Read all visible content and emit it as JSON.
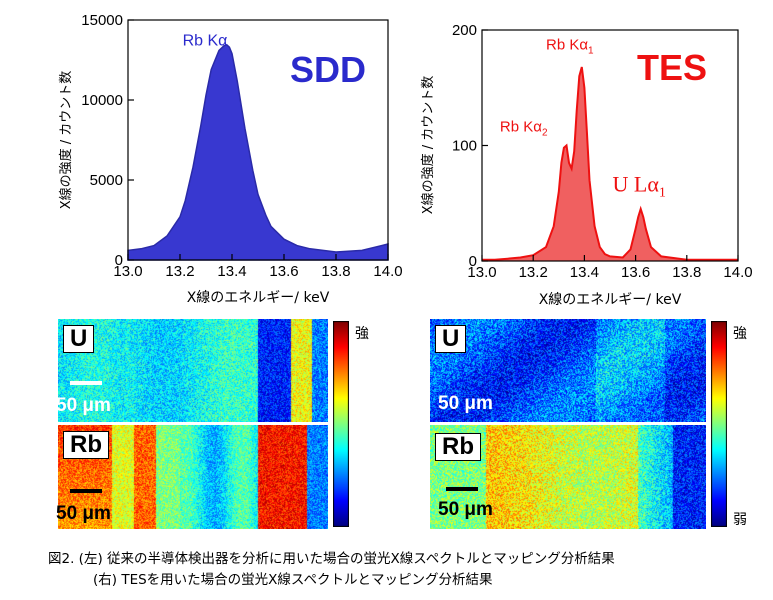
{
  "chart_data": [
    {
      "type": "area",
      "detector": "SDD",
      "xlabel": "X線のエネルギー/ keV",
      "ylabel": "X線の強度 / カウント数",
      "xlim": [
        13.0,
        14.0
      ],
      "ylim": [
        0,
        15000
      ],
      "xticks": [
        "13.0",
        "13.2",
        "13.4",
        "13.6",
        "13.8",
        "14.0"
      ],
      "yticks": [
        "0",
        "5000",
        "10000",
        "15000"
      ],
      "color": "#3333cc",
      "annotations": [
        {
          "text": "Rb Kα",
          "x": 13.21,
          "y": 13400
        }
      ],
      "x": [
        13.0,
        13.05,
        13.1,
        13.15,
        13.2,
        13.22,
        13.25,
        13.28,
        13.3,
        13.32,
        13.35,
        13.37,
        13.38,
        13.39,
        13.4,
        13.42,
        13.45,
        13.48,
        13.5,
        13.53,
        13.55,
        13.6,
        13.65,
        13.7,
        13.8,
        13.9,
        14.0
      ],
      "y": [
        600,
        700,
        900,
        1500,
        2700,
        3700,
        5800,
        8400,
        10300,
        11900,
        13100,
        13400,
        13450,
        13300,
        12900,
        11200,
        8200,
        5600,
        4100,
        2800,
        2100,
        1300,
        900,
        700,
        500,
        600,
        1000
      ]
    },
    {
      "type": "line",
      "detector": "TES",
      "xlabel": "X線のエネルギー/ keV",
      "ylabel": "X線の強度 / カウント数",
      "xlim": [
        13.0,
        14.0
      ],
      "ylim": [
        0,
        200
      ],
      "xticks": [
        "13.0",
        "13.2",
        "13.4",
        "13.6",
        "13.8",
        "14.0"
      ],
      "yticks": [
        "0",
        "100",
        "200"
      ],
      "color": "#ee1111",
      "annotations": [
        {
          "text": "Rb Kα",
          "sub": "1",
          "x": 13.25,
          "y": 183
        },
        {
          "text": "Rb Kα",
          "sub": "2",
          "x": 13.07,
          "y": 112
        },
        {
          "text": "U Lα",
          "sub": "1",
          "x": 13.51,
          "y": 60
        }
      ],
      "x": [
        13.0,
        13.05,
        13.1,
        13.15,
        13.2,
        13.25,
        13.28,
        13.3,
        13.31,
        13.32,
        13.33,
        13.34,
        13.35,
        13.36,
        13.37,
        13.38,
        13.39,
        13.4,
        13.41,
        13.42,
        13.44,
        13.46,
        13.48,
        13.5,
        13.55,
        13.58,
        13.6,
        13.61,
        13.62,
        13.63,
        13.64,
        13.66,
        13.7,
        13.8,
        13.9,
        14.0
      ],
      "y": [
        1,
        1,
        2,
        3,
        5,
        12,
        30,
        60,
        85,
        98,
        100,
        85,
        80,
        95,
        130,
        160,
        168,
        150,
        110,
        70,
        30,
        12,
        6,
        4,
        3,
        10,
        28,
        38,
        45,
        38,
        28,
        12,
        4,
        1,
        1,
        1
      ]
    }
  ],
  "maps": {
    "left": [
      {
        "element": "U",
        "scale": "50 μm"
      },
      {
        "element": "Rb",
        "scale": "50 μm"
      }
    ],
    "right": [
      {
        "element": "U",
        "scale": "50 μm"
      },
      {
        "element": "Rb",
        "scale": "50 μm"
      }
    ],
    "colorbar": {
      "high": "強",
      "low": "弱"
    }
  },
  "caption": {
    "line1": "図2. (左) 従来の半導体検出器を分析に用いた場合の蛍光X線スペクトルとマッピング分析結果",
    "line2": "(右) TESを用いた場合の蛍光X線スペクトルとマッピング分析結果"
  }
}
